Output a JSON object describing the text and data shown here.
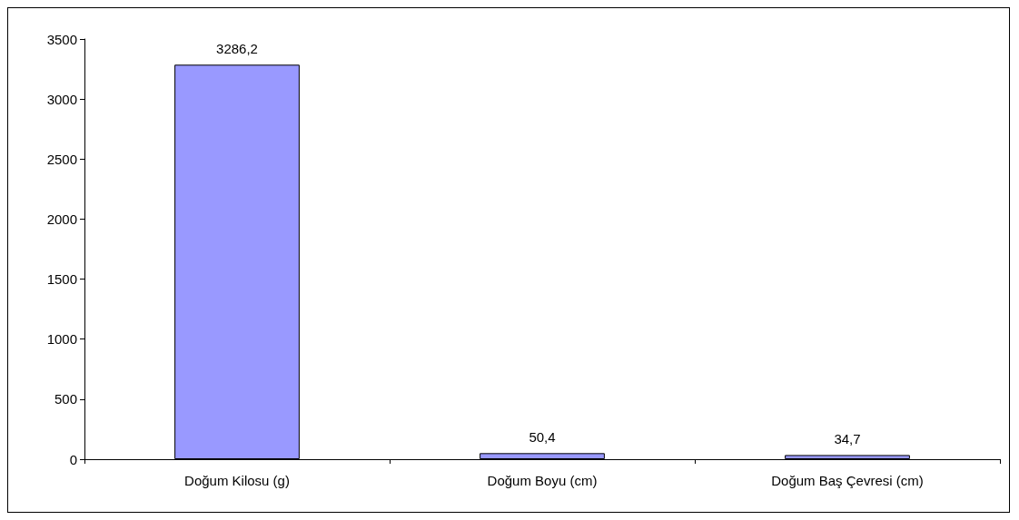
{
  "chart_data": {
    "type": "bar",
    "categories": [
      "Doğum Kilosu (g)",
      "Doğum Boyu (cm)",
      "Doğum Baş Çevresi (cm)"
    ],
    "values": [
      3286.2,
      50.4,
      34.7
    ],
    "value_labels": [
      "3286,2",
      "50,4",
      "34,7"
    ],
    "color": "#9999ff",
    "ylim": [
      0,
      3500
    ],
    "yticks": [
      0,
      500,
      1000,
      1500,
      2000,
      2500,
      3000,
      3500
    ],
    "grid": false
  }
}
